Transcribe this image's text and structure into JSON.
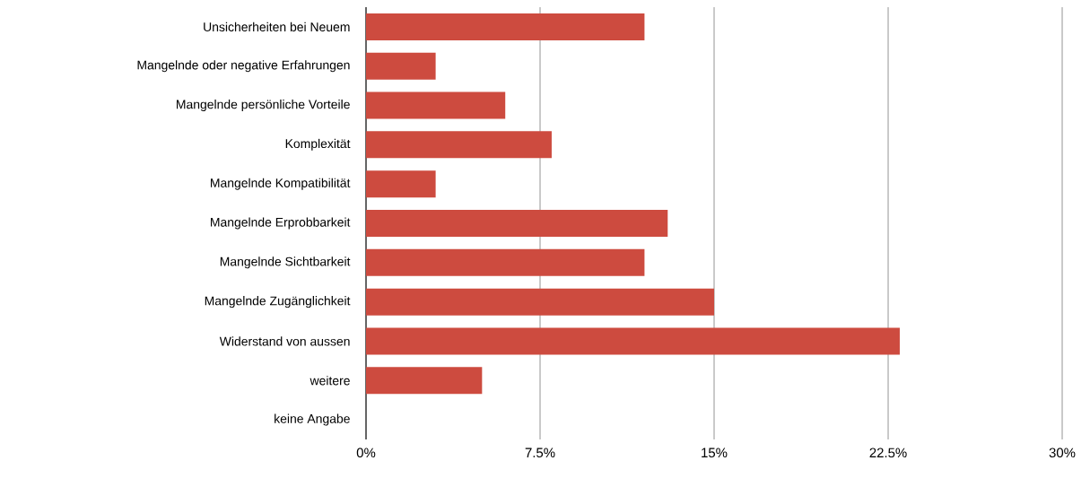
{
  "chart_data": {
    "type": "bar",
    "orientation": "horizontal",
    "categories": [
      "Unsicherheiten bei Neuem",
      "Mangelnde oder negative Erfahrungen",
      "Mangelnde persönliche Vorteile",
      "Komplexität",
      "Mangelnde Kompatibilität",
      "Mangelnde Erprobbarkeit",
      "Mangelnde Sichtbarkeit",
      "Mangelnde Zugänglichkeit",
      "Widerstand von aussen",
      "weitere",
      "keine Angabe"
    ],
    "values": [
      12,
      3,
      6,
      8,
      3,
      13,
      12,
      15,
      23,
      5,
      0
    ],
    "color": "#cd4b3f",
    "xlim": [
      0,
      30
    ],
    "xticks": [
      {
        "value": 0,
        "label": "0%"
      },
      {
        "value": 7.5,
        "label": "7.5%"
      },
      {
        "value": 15,
        "label": "15%"
      },
      {
        "value": 22.5,
        "label": "22.5%"
      },
      {
        "value": 30,
        "label": "30%"
      }
    ],
    "grid": "x"
  }
}
